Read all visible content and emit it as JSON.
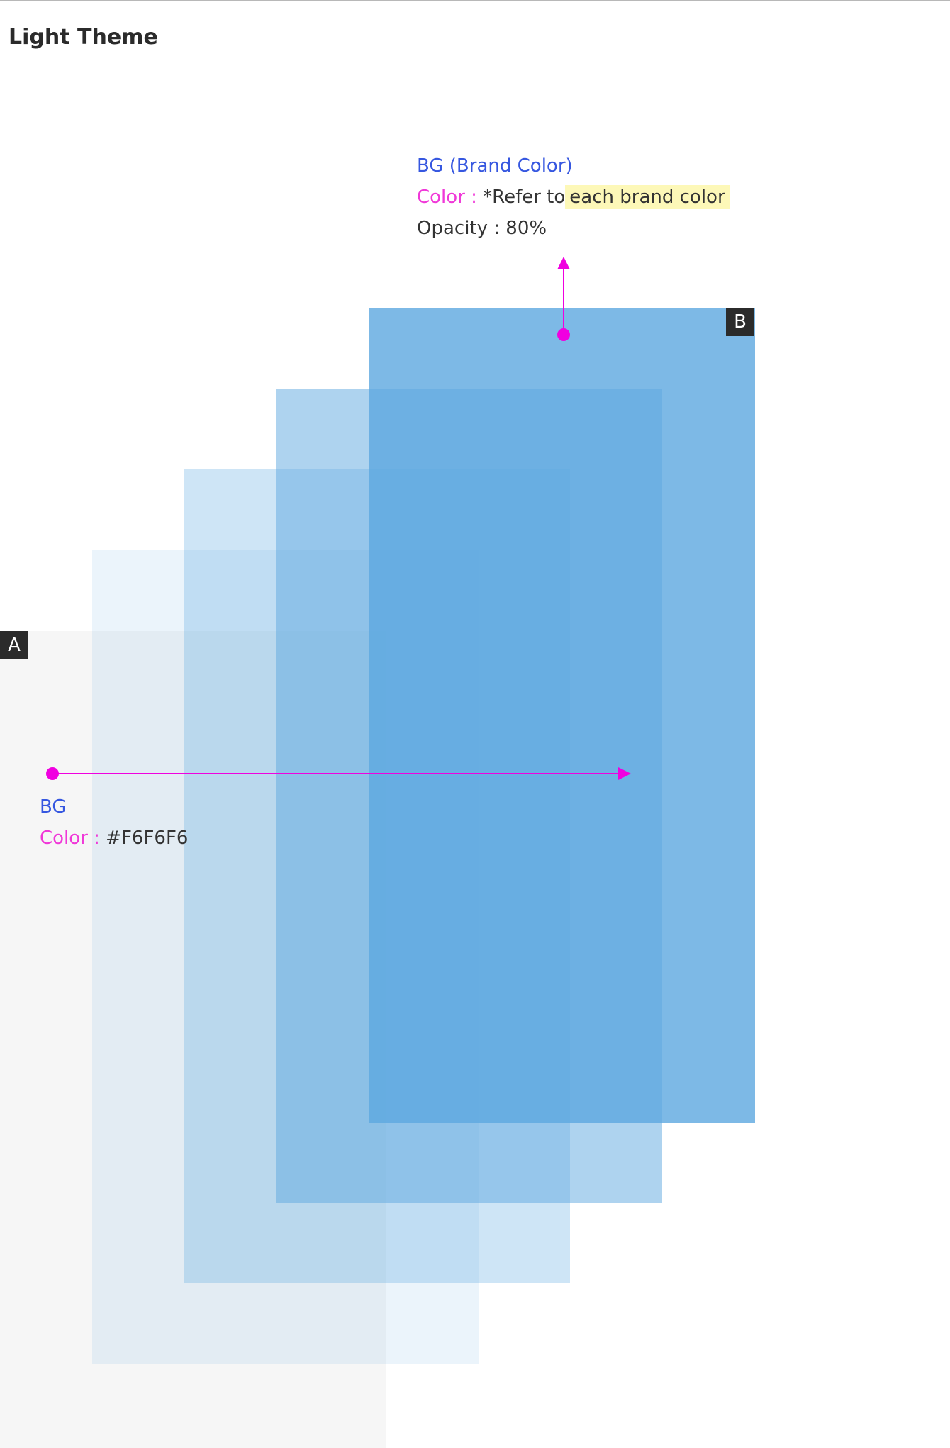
{
  "page": {
    "title": "Light Theme"
  },
  "colors": {
    "panel_a_bg": "#F6F6F6",
    "brand_blue": "#5DA8E0",
    "connector": "#F000E0",
    "label_heading": "#3657E0",
    "label_key": "#F038D8",
    "highlight": "#FDF8B8",
    "badge_bg": "#2B2B2B"
  },
  "layers": {
    "a": {
      "badge": "A",
      "label": {
        "heading": "BG",
        "color_key": "Color :",
        "color_value": "#F6F6F6"
      }
    },
    "b": {
      "badge": "B",
      "label": {
        "heading": "BG (Brand Color)",
        "color_key": "Color :",
        "color_value_prefix": "*Refer to",
        "color_value_highlight": "each brand color",
        "opacity_line": "Opacity : 80%"
      }
    }
  }
}
